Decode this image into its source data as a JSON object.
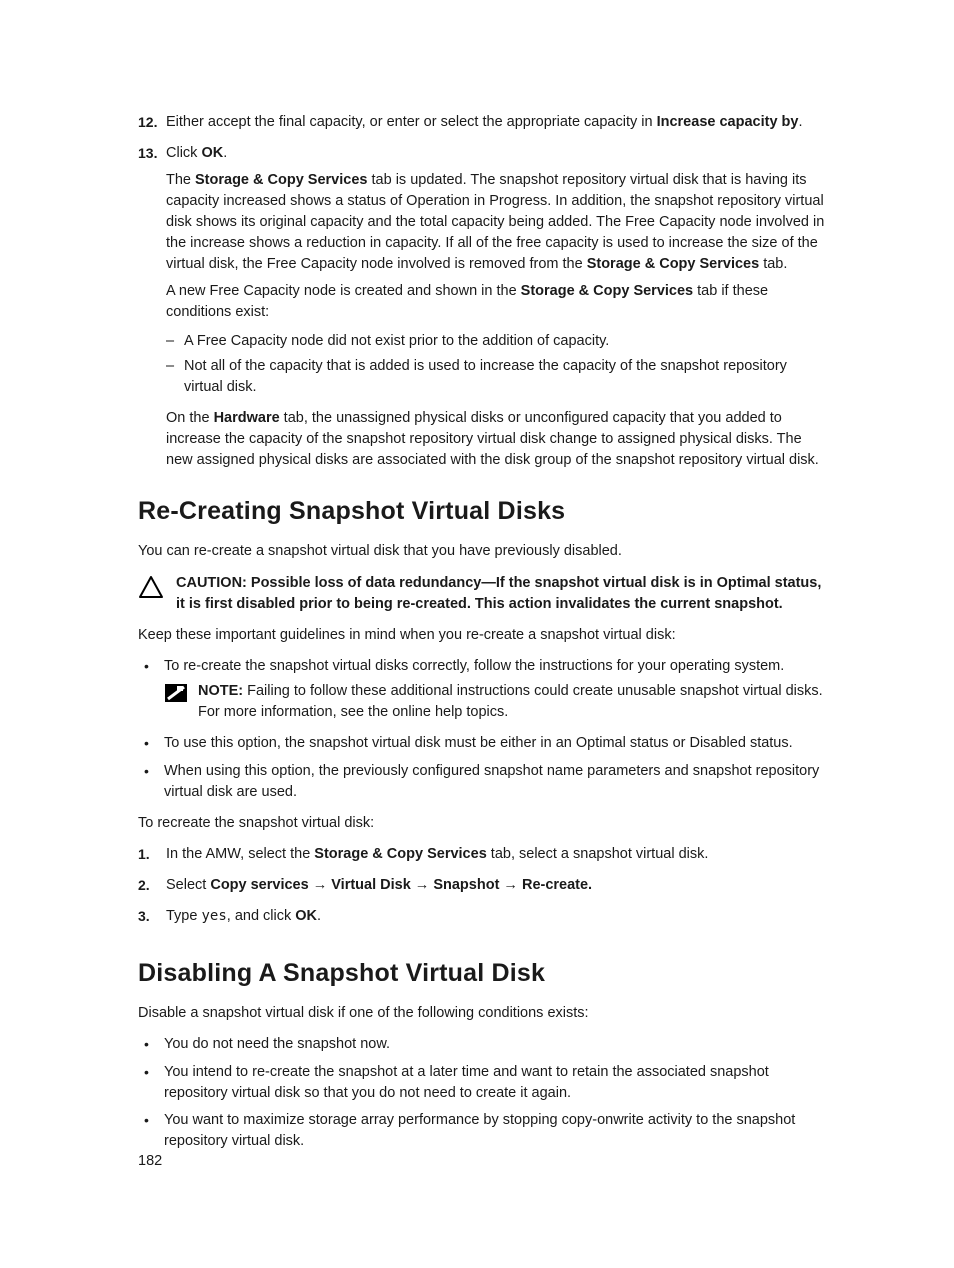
{
  "colors": {
    "text": "#1a1a1a",
    "background": "#ffffff",
    "caution_stroke": "#000000",
    "note_fill": "#000000",
    "note_stroke": "#ffffff"
  },
  "typography": {
    "body_fontsize_pt": 11,
    "heading_fontsize_pt": 19,
    "heading_weight": 700,
    "line_height": 1.45,
    "font_family": "Segoe UI / Helvetica Neue / Arial"
  },
  "steps": [
    {
      "num": "12.",
      "parts": [
        {
          "t": "Either accept the final capacity, or enter or select the appropriate capacity in "
        },
        {
          "t": "Increase capacity by",
          "b": true
        },
        {
          "t": "."
        }
      ]
    },
    {
      "num": "13.",
      "parts": [
        {
          "t": "Click "
        },
        {
          "t": "OK",
          "b": true
        },
        {
          "t": "."
        }
      ],
      "after_paras": [
        [
          {
            "t": "The "
          },
          {
            "t": "Storage & Copy Services",
            "b": true
          },
          {
            "t": " tab is updated. The snapshot repository virtual disk that is having its capacity increased shows a status of Operation in Progress. In addition, the snapshot repository virtual disk shows its original capacity and the total capacity being added. The Free Capacity node involved in the increase shows a reduction in capacity. If all of the free capacity is used to increase the size of the virtual disk, the Free Capacity node involved is removed from the "
          },
          {
            "t": "Storage & Copy Services",
            "b": true
          },
          {
            "t": " tab."
          }
        ],
        [
          {
            "t": "A new Free Capacity node is created and shown in the "
          },
          {
            "t": "Storage & Copy Services",
            "b": true
          },
          {
            "t": " tab if these conditions exist:"
          }
        ]
      ],
      "dash_list": [
        "A Free Capacity node did not exist prior to the addition of capacity.",
        "Not all of the capacity that is added is used to increase the capacity of the snapshot repository virtual disk."
      ],
      "after_dash_para": [
        {
          "t": "On the "
        },
        {
          "t": "Hardware",
          "b": true
        },
        {
          "t": " tab, the unassigned physical disks or unconfigured capacity that you added to increase the capacity of the snapshot repository virtual disk change to assigned physical disks. The new assigned physical disks are associated with the disk group of the snapshot repository virtual disk."
        }
      ]
    }
  ],
  "section1": {
    "title": "Re-Creating Snapshot Virtual Disks",
    "lead": "You can re-create a snapshot virtual disk that you have previously disabled.",
    "caution": [
      {
        "t": "CAUTION: Possible loss of data redundancy—If the snapshot virtual disk is in Optimal status, it is first disabled prior to being re-created. This action invalidates the current snapshot."
      }
    ],
    "para2": "Keep these important guidelines in mind when you re-create a snapshot virtual disk:",
    "bullets": [
      {
        "text": "To re-create the snapshot virtual disks correctly, follow the instructions for your operating system.",
        "note": [
          {
            "t": "NOTE: ",
            "b": true
          },
          {
            "t": "Failing to follow these additional instructions could create unusable snapshot virtual disks. For more information, see the online help topics."
          }
        ]
      },
      {
        "text": "To use this option, the snapshot virtual disk must be either in an Optimal status or Disabled status."
      },
      {
        "text": "When using this option, the previously configured snapshot name parameters and snapshot repository virtual disk are used."
      }
    ],
    "para3": "To recreate the snapshot virtual disk:",
    "steps": [
      {
        "num": "1.",
        "parts": [
          {
            "t": "In the AMW, select the "
          },
          {
            "t": "Storage & Copy Services",
            "b": true
          },
          {
            "t": " tab, select a snapshot virtual disk."
          }
        ]
      },
      {
        "num": "2.",
        "parts": [
          {
            "t": "Select "
          },
          {
            "t": "Copy services",
            "b": true
          },
          {
            "t": " → "
          },
          {
            "t": "Virtual Disk",
            "b": true
          },
          {
            "t": " → "
          },
          {
            "t": "Snapshot",
            "b": true
          },
          {
            "t": " → "
          },
          {
            "t": "Re-create.",
            "b": true
          }
        ]
      },
      {
        "num": "3.",
        "parts": [
          {
            "t": "Type "
          },
          {
            "t": "yes",
            "mono": true
          },
          {
            "t": ", and click "
          },
          {
            "t": "OK",
            "b": true
          },
          {
            "t": "."
          }
        ]
      }
    ]
  },
  "section2": {
    "title": "Disabling A Snapshot Virtual Disk",
    "lead": "Disable a snapshot virtual disk if one of the following conditions exists:",
    "bullets": [
      {
        "text": "You do not need the snapshot now."
      },
      {
        "text": "You intend to re-create the snapshot at a later time and want to retain the associated snapshot repository virtual disk so that you do not need to create it again."
      },
      {
        "text": "You want to maximize storage array performance by stopping copy-onwrite activity to the snapshot repository virtual disk."
      }
    ]
  },
  "page_number": "182"
}
